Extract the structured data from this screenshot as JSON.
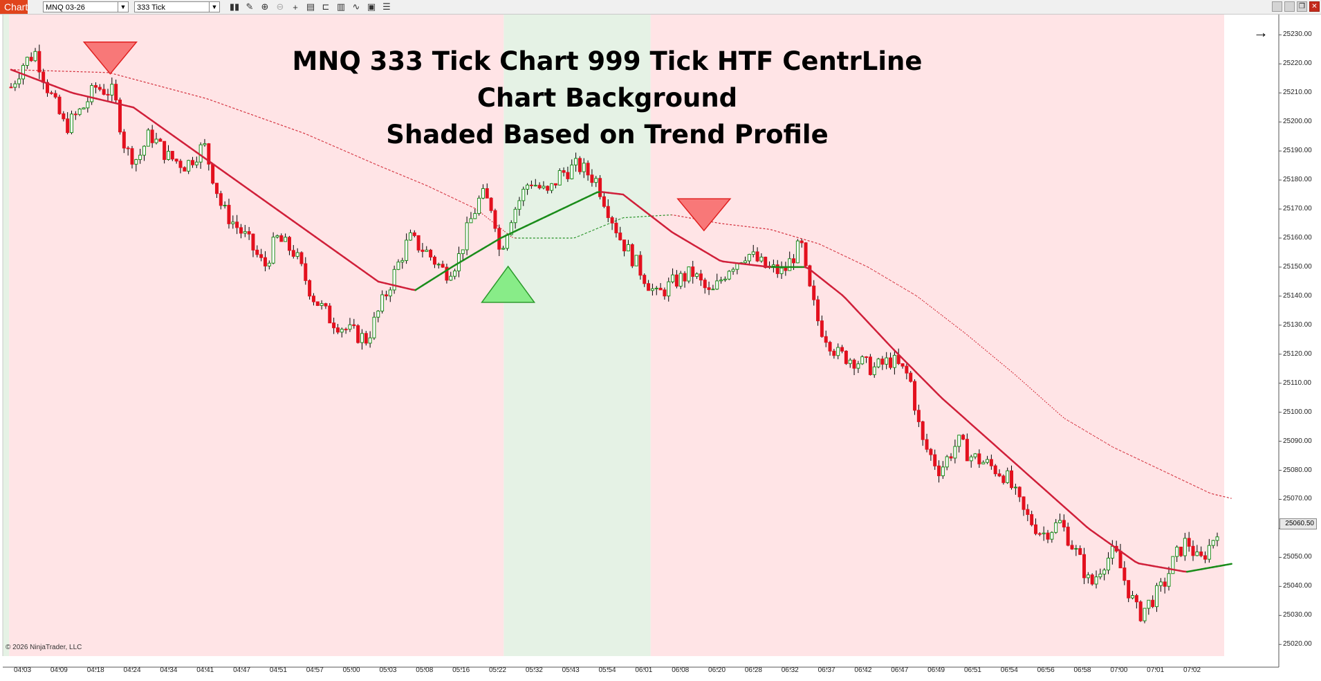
{
  "toolbar": {
    "chart_tab": "Chart",
    "instrument": "MNQ 03-26",
    "interval": "333 Tick",
    "icons": [
      "bar-type-icon",
      "draw-icon",
      "zoom-in-icon",
      "zoom-out-icon",
      "crosshair-icon",
      "data-box-icon",
      "chart-style-icon",
      "properties-icon",
      "indicators-icon",
      "strategies-icon",
      "list-icon"
    ]
  },
  "window_controls": [
    "minimize-icon",
    "restore-icon",
    "maximize-icon",
    "close-icon"
  ],
  "title_lines": [
    "MNQ 333 Tick Chart  999 Tick HTF CentrLine",
    "Chart Background",
    "Shaded Based on Trend Profile"
  ],
  "copyright": "© 2026 NinjaTrader, LLC",
  "chart_data": {
    "type": "candlestick",
    "instrument": "MNQ 03-26",
    "y_ticks": [
      "25230.00",
      "25220.00",
      "25210.00",
      "25200.00",
      "25190.00",
      "25180.00",
      "25170.00",
      "25160.00",
      "25150.00",
      "25140.00",
      "25130.00",
      "25120.00",
      "25110.00",
      "25100.00",
      "25090.00",
      "25080.00",
      "25070.00",
      "25060.00",
      "25050.00",
      "25040.00",
      "25030.00",
      "25020.00"
    ],
    "x_ticks": [
      "04:03",
      "04:09",
      "04:18",
      "04:24",
      "04:34",
      "04:41",
      "04:47",
      "04:51",
      "04:57",
      "05:00",
      "05:03",
      "05:08",
      "05:16",
      "05:22",
      "05:32",
      "05:43",
      "05:54",
      "06:01",
      "06:08",
      "06:20",
      "06:28",
      "06:32",
      "06:37",
      "06:42",
      "06:47",
      "06:49",
      "06:51",
      "06:54",
      "06:56",
      "06:58",
      "07:00",
      "07:01",
      "07:02"
    ],
    "last_price": "25060.50",
    "ylim": [
      25016,
      25237
    ],
    "bg_regions": [
      {
        "from": 0,
        "to": 0.0075,
        "trend": "up"
      },
      {
        "from": 0.0075,
        "to": 0.4115,
        "trend": "down"
      },
      {
        "from": 0.4115,
        "to": 0.5315,
        "trend": "up"
      },
      {
        "from": 0.5315,
        "to": 1.0,
        "trend": "down"
      }
    ],
    "price_path": [
      [
        0.0,
        25212
      ],
      [
        0.01,
        25220
      ],
      [
        0.02,
        25224
      ],
      [
        0.03,
        25212
      ],
      [
        0.045,
        25198
      ],
      [
        0.06,
        25205
      ],
      [
        0.07,
        25212
      ],
      [
        0.085,
        25210
      ],
      [
        0.095,
        25190
      ],
      [
        0.105,
        25187
      ],
      [
        0.115,
        25196
      ],
      [
        0.13,
        25188
      ],
      [
        0.145,
        25185
      ],
      [
        0.16,
        25192
      ],
      [
        0.175,
        25170
      ],
      [
        0.195,
        25160
      ],
      [
        0.21,
        25150
      ],
      [
        0.22,
        25160
      ],
      [
        0.235,
        25155
      ],
      [
        0.25,
        25140
      ],
      [
        0.265,
        25132
      ],
      [
        0.28,
        25128
      ],
      [
        0.295,
        25125
      ],
      [
        0.305,
        25135
      ],
      [
        0.315,
        25145
      ],
      [
        0.33,
        25160
      ],
      [
        0.345,
        25155
      ],
      [
        0.36,
        25148
      ],
      [
        0.37,
        25152
      ],
      [
        0.38,
        25165
      ],
      [
        0.39,
        25175
      ],
      [
        0.4,
        25170
      ],
      [
        0.405,
        25155
      ],
      [
        0.415,
        25168
      ],
      [
        0.43,
        25180
      ],
      [
        0.445,
        25175
      ],
      [
        0.455,
        25182
      ],
      [
        0.47,
        25185
      ],
      [
        0.485,
        25180
      ],
      [
        0.495,
        25170
      ],
      [
        0.505,
        25160
      ],
      [
        0.52,
        25150
      ],
      [
        0.535,
        25140
      ],
      [
        0.55,
        25145
      ],
      [
        0.565,
        25148
      ],
      [
        0.58,
        25140
      ],
      [
        0.595,
        25150
      ],
      [
        0.61,
        25155
      ],
      [
        0.625,
        25150
      ],
      [
        0.64,
        25148
      ],
      [
        0.655,
        25158
      ],
      [
        0.66,
        25145
      ],
      [
        0.67,
        25130
      ],
      [
        0.685,
        25120
      ],
      [
        0.7,
        25118
      ],
      [
        0.715,
        25115
      ],
      [
        0.73,
        25118
      ],
      [
        0.745,
        25112
      ],
      [
        0.755,
        25090
      ],
      [
        0.77,
        25080
      ],
      [
        0.785,
        25090
      ],
      [
        0.795,
        25085
      ],
      [
        0.81,
        25082
      ],
      [
        0.825,
        25078
      ],
      [
        0.84,
        25065
      ],
      [
        0.855,
        25058
      ],
      [
        0.87,
        25062
      ],
      [
        0.885,
        25050
      ],
      [
        0.895,
        25040
      ],
      [
        0.905,
        25048
      ],
      [
        0.915,
        25052
      ],
      [
        0.925,
        25040
      ],
      [
        0.935,
        25030
      ],
      [
        0.945,
        25035
      ],
      [
        0.955,
        25040
      ],
      [
        0.965,
        25050
      ],
      [
        0.975,
        25056
      ],
      [
        0.985,
        25048
      ],
      [
        0.995,
        25055
      ],
      [
        1.0,
        25060
      ]
    ],
    "centerline": [
      [
        0.0,
        25218
      ],
      [
        0.05,
        25210
      ],
      [
        0.1,
        25205
      ],
      [
        0.15,
        25190
      ],
      [
        0.2,
        25175
      ],
      [
        0.25,
        25160
      ],
      [
        0.3,
        25145
      ],
      [
        0.33,
        25142
      ],
      [
        0.36,
        25150
      ],
      [
        0.4,
        25160
      ],
      [
        0.44,
        25168
      ],
      [
        0.48,
        25176
      ],
      [
        0.5,
        25175
      ],
      [
        0.54,
        25162
      ],
      [
        0.58,
        25152
      ],
      [
        0.62,
        25150
      ],
      [
        0.65,
        25150
      ],
      [
        0.68,
        25140
      ],
      [
        0.72,
        25122
      ],
      [
        0.76,
        25105
      ],
      [
        0.8,
        25090
      ],
      [
        0.84,
        25075
      ],
      [
        0.88,
        25060
      ],
      [
        0.92,
        25048
      ],
      [
        0.96,
        25045
      ],
      [
        1.0,
        25048
      ]
    ],
    "htf_centerline": [
      [
        0.0,
        25218
      ],
      [
        0.08,
        25217
      ],
      [
        0.16,
        25208
      ],
      [
        0.24,
        25196
      ],
      [
        0.3,
        25185
      ],
      [
        0.34,
        25178
      ],
      [
        0.38,
        25170
      ],
      [
        0.41,
        25160
      ],
      [
        0.46,
        25160
      ],
      [
        0.5,
        25167
      ],
      [
        0.54,
        25168
      ],
      [
        0.58,
        25165
      ],
      [
        0.62,
        25163
      ],
      [
        0.66,
        25158
      ],
      [
        0.7,
        25150
      ],
      [
        0.74,
        25140
      ],
      [
        0.78,
        25127
      ],
      [
        0.82,
        25113
      ],
      [
        0.86,
        25098
      ],
      [
        0.9,
        25088
      ],
      [
        0.94,
        25080
      ],
      [
        0.98,
        25072
      ],
      [
        1.0,
        25070
      ]
    ],
    "signals": [
      {
        "kind": "sell",
        "x": 0.081,
        "price": 25218
      },
      {
        "kind": "buy",
        "x": 0.406,
        "price": 25145
      },
      {
        "kind": "sell",
        "x": 0.566,
        "price": 25164
      }
    ]
  }
}
